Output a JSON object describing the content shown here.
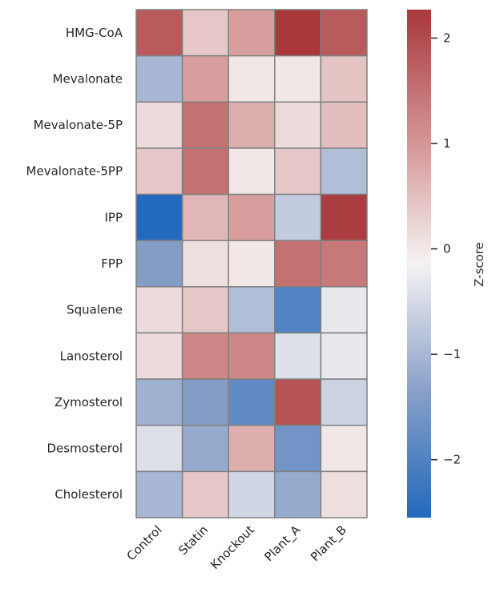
{
  "chart_data": {
    "type": "heatmap",
    "title": "",
    "xlabel": "",
    "ylabel": "",
    "colormap": "vlag",
    "colors": {
      "low": "#2369bd",
      "mid": "#f4f1f1",
      "high": "#a9373b",
      "cell_border": "#808080"
    },
    "rows": [
      "HMG-CoA",
      "Mevalonate",
      "Mevalonate-5P",
      "Mevalonate-5PP",
      "IPP",
      "FPP",
      "Squalene",
      "Lanosterol",
      "Zymosterol",
      "Desmosterol",
      "Cholesterol"
    ],
    "columns": [
      "Control",
      "Statin",
      "Knockout",
      "Plant_A",
      "Plant_B"
    ],
    "values": [
      [
        1.8,
        0.4,
        0.9,
        2.27,
        1.8
      ],
      [
        -1.0,
        0.9,
        0.0,
        0.0,
        0.45
      ],
      [
        0.15,
        1.5,
        0.7,
        0.15,
        0.5
      ],
      [
        0.4,
        1.5,
        0.0,
        0.4,
        -0.9
      ],
      [
        -2.55,
        0.6,
        0.9,
        -0.7,
        2.2
      ],
      [
        -1.4,
        0.1,
        0.0,
        1.5,
        1.4
      ],
      [
        0.15,
        0.4,
        -0.9,
        -2.0,
        -0.3
      ],
      [
        0.15,
        1.2,
        1.2,
        -0.4,
        -0.3
      ],
      [
        -1.1,
        -1.4,
        -1.8,
        1.9,
        -0.6
      ],
      [
        -0.4,
        -1.2,
        0.7,
        -1.6,
        0.0
      ],
      [
        -1.0,
        0.4,
        -0.55,
        -1.2,
        0.1
      ]
    ],
    "colorbar": {
      "label": "Z-score",
      "range": [
        -2.55,
        2.27
      ],
      "ticks": [
        2,
        1,
        0,
        -1,
        -2
      ],
      "tick_labels": [
        "2",
        "1",
        "0",
        "−1",
        "−2"
      ]
    }
  }
}
